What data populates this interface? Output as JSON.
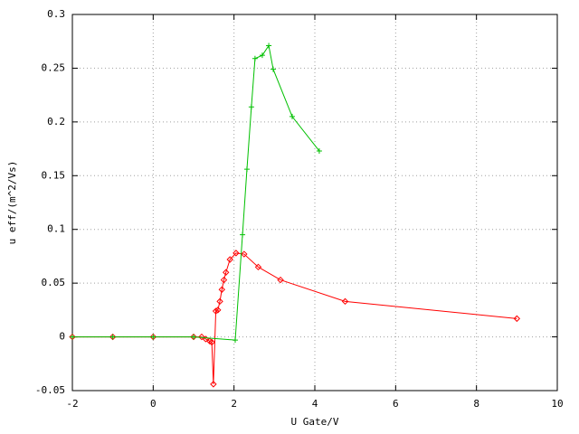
{
  "chart_data": {
    "type": "line",
    "xlabel": "U Gate/V",
    "ylabel": "u eff/(m^2/Vs)",
    "xlim": [
      -2,
      10
    ],
    "ylim": [
      -0.05,
      0.3
    ],
    "xticks": [
      -2,
      0,
      2,
      4,
      6,
      8,
      10
    ],
    "yticks": [
      -0.05,
      0,
      0.05,
      0.1,
      0.15,
      0.2,
      0.25,
      0.3
    ],
    "grid": true,
    "series": [
      {
        "color": "#ff0000",
        "marker": "diamond",
        "x": [
          -2,
          -1,
          0,
          1,
          1.2,
          1.3,
          1.4,
          1.45,
          1.49,
          1.55,
          1.6,
          1.65,
          1.7,
          1.75,
          1.8,
          1.9,
          2.05,
          2.25,
          2.6,
          3.15,
          4.75,
          9
        ],
        "values": [
          0,
          0,
          0,
          0,
          0,
          -0.002,
          -0.004,
          -0.005,
          -0.044,
          0.024,
          0.025,
          0.033,
          0.044,
          0.053,
          0.06,
          0.072,
          0.078,
          0.077,
          0.065,
          0.053,
          0.033,
          0.017
        ]
      },
      {
        "color": "#00c000",
        "marker": "plus",
        "x": [
          -2,
          -1,
          0,
          1,
          2.03,
          2.21,
          2.32,
          2.43,
          2.52,
          2.7,
          2.86,
          2.97,
          3.44,
          4.11
        ],
        "values": [
          0,
          0,
          0,
          0,
          -0.003,
          0.095,
          0.156,
          0.214,
          0.259,
          0.262,
          0.271,
          0.249,
          0.205,
          0.173
        ]
      }
    ]
  }
}
